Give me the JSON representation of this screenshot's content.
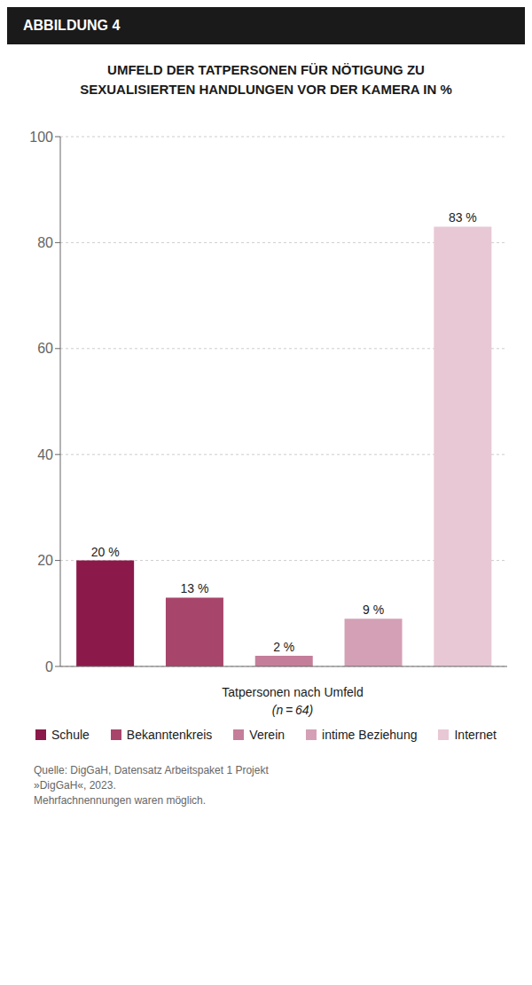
{
  "chart_data": {
    "type": "bar",
    "title": "UMFELD DER TATPERSONEN FÜR NÖTIGUNG ZU\nSEXUALISIERTEN HANDLUNGEN VOR DER KAMERA IN %",
    "annotations": [
      "ABBILDUNG 4",
      "Quelle: DigGaH, Datensatz Arbeitspaket 1 Projekt\n»DigGaH«, 2023.\nMehrfachnennungen waren möglich."
    ],
    "xlabel": "Tatpersonen nach Umfeld\n(n = 64)",
    "categories": [
      "Schule",
      "Bekanntenkreis",
      "Verein",
      "intime Beziehung",
      "Internet"
    ],
    "values": [
      20,
      13,
      2,
      9,
      83
    ],
    "value_labels": [
      "20 %",
      "13 %",
      "2 %",
      "9 %",
      "83 %"
    ],
    "colors": [
      "#8B1A4A",
      "#A8456B",
      "#C47E99",
      "#D4A0B5",
      "#E8C8D5"
    ],
    "ylim": [
      0,
      100
    ],
    "yticks": [
      0,
      20,
      40,
      60,
      80,
      100
    ],
    "grid": true,
    "data_labels": true,
    "tick_labels": "y",
    "legend": "bottom"
  }
}
